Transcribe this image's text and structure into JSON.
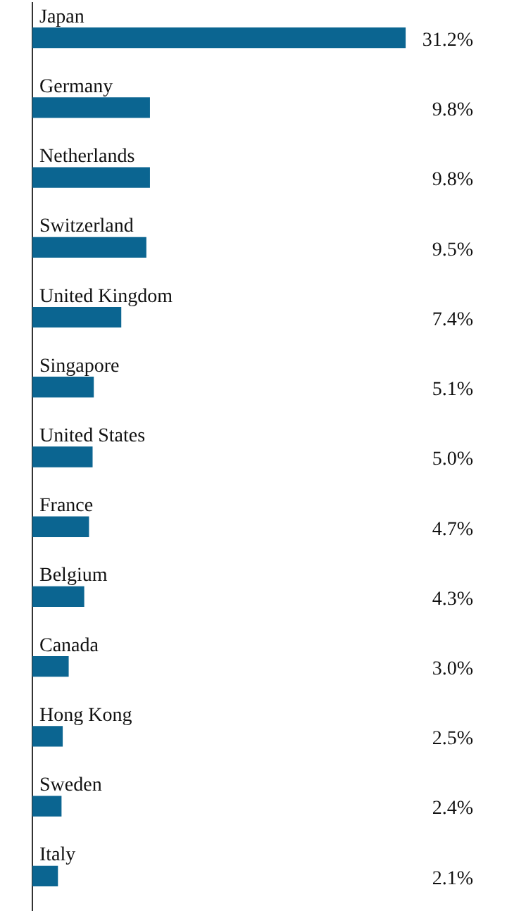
{
  "chart_data": {
    "type": "bar",
    "orientation": "horizontal",
    "grid": false,
    "legend": false,
    "categories": [
      "Japan",
      "Germany",
      "Netherlands",
      "Switzerland",
      "United Kingdom",
      "Singapore",
      "United States",
      "France",
      "Belgium",
      "Canada",
      "Hong Kong",
      "Sweden",
      "Italy"
    ],
    "values": [
      31.2,
      9.8,
      9.8,
      9.5,
      7.4,
      5.1,
      5.0,
      4.7,
      4.3,
      3.0,
      2.5,
      2.4,
      2.1
    ],
    "value_labels": [
      "31.2%",
      "9.8%",
      "9.8%",
      "9.5%",
      "7.4%",
      "5.1%",
      "5.0%",
      "4.7%",
      "4.3%",
      "3.0%",
      "2.5%",
      "2.4%",
      "2.1%"
    ],
    "color": "#0b6591"
  }
}
